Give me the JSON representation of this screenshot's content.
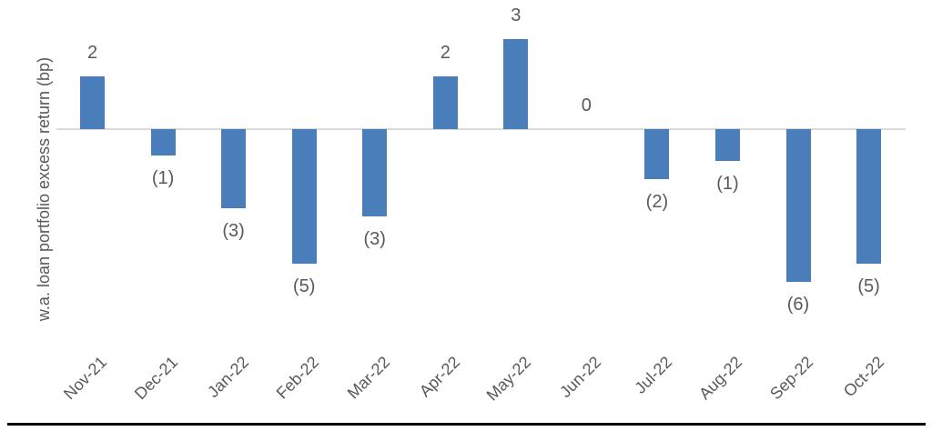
{
  "chart_data": {
    "type": "bar",
    "title": "",
    "xlabel": "",
    "ylabel": "w.a. loan portfolio excess return (bp)",
    "categories": [
      "Nov-21",
      "Dec-21",
      "Jan-22",
      "Feb-22",
      "Mar-22",
      "Apr-22",
      "May-22",
      "Jun-22",
      "Jul-22",
      "Aug-22",
      "Sep-22",
      "Oct-22"
    ],
    "values": [
      2.0,
      -1.0,
      -3.0,
      -5.1,
      -3.3,
      2.0,
      3.4,
      0.0,
      -1.9,
      -1.2,
      -5.8,
      -5.1
    ],
    "point_labels": [
      "2",
      "(1)",
      "(3)",
      "(5)",
      "(3)",
      "2",
      "3",
      "0",
      "(2)",
      "(1)",
      "(6)",
      "(5)"
    ],
    "ylim": [
      -7,
      4
    ],
    "grid": "off",
    "legend": "none",
    "colors": {
      "bar": "#4A7EBB",
      "zero_line": "#D9D9D9",
      "text": "#595959",
      "bottom_rule": "#000000"
    }
  }
}
